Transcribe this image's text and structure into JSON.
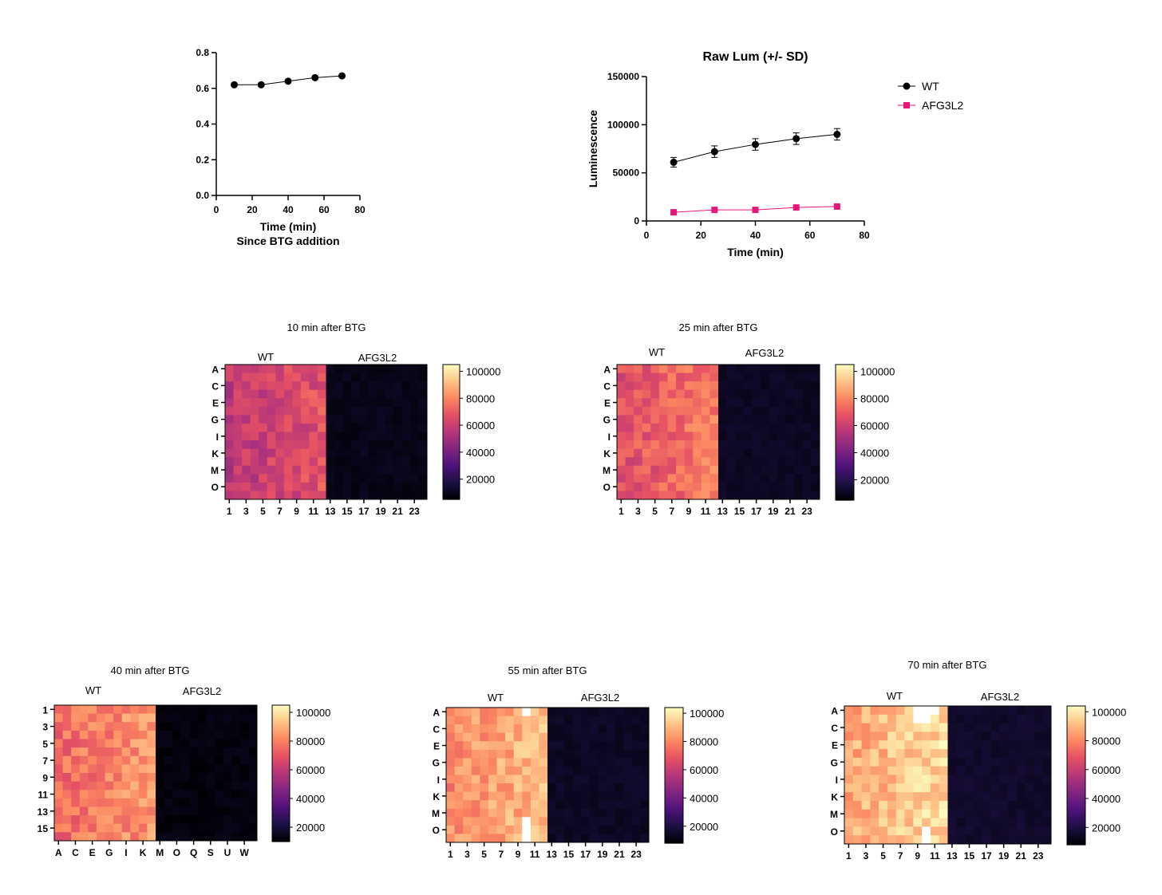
{
  "colors": {
    "wt": "#000000",
    "afg3l2": "#e6177a",
    "colormap": [
      "#000004",
      "#1c1044",
      "#4f127b",
      "#812581",
      "#b5367a",
      "#e55064",
      "#fb8761",
      "#fec287",
      "#fcfdbf"
    ]
  },
  "chart_data": [
    {
      "type": "line",
      "title": "",
      "xlabel": "Time (min)",
      "xlabel2": "Since BTG addition",
      "ylabel": "",
      "xlim": [
        0,
        80
      ],
      "ylim": [
        0,
        0.8
      ],
      "xticks": [
        "0",
        "20",
        "40",
        "60",
        "80"
      ],
      "yticks": [
        "0.0",
        "0.2",
        "0.4",
        "0.6",
        "0.8"
      ],
      "series": [
        {
          "x": [
            10,
            25,
            40,
            55,
            70
          ],
          "values": [
            0.62,
            0.62,
            0.64,
            0.66,
            0.67
          ],
          "marker": "circle",
          "color": "#000000"
        }
      ]
    },
    {
      "type": "line",
      "title": "Raw Lum (+/- SD)",
      "xlabel": "Time (min)",
      "ylabel": "Luminescence",
      "xlim": [
        0,
        80
      ],
      "ylim": [
        0,
        150000
      ],
      "xticks": [
        "0",
        "20",
        "40",
        "60",
        "80"
      ],
      "yticks": [
        "0",
        "50000",
        "100000",
        "150000"
      ],
      "legend_position": "top-right",
      "series": [
        {
          "name": "WT",
          "x": [
            10,
            25,
            40,
            55,
            70
          ],
          "values": [
            61000,
            72000,
            79500,
            85500,
            90000
          ],
          "sd": [
            5000,
            6000,
            6000,
            6000,
            6000
          ],
          "marker": "circle",
          "color": "#000000"
        },
        {
          "name": "AFG3L2",
          "x": [
            10,
            25,
            40,
            55,
            70
          ],
          "values": [
            9000,
            11500,
            11500,
            14000,
            15000
          ],
          "sd": [
            500,
            500,
            500,
            500,
            500
          ],
          "marker": "square",
          "color": "#e6177a"
        }
      ]
    },
    {
      "type": "heatmap",
      "title": "10 min after BTG",
      "groups": [
        "WT",
        "AFG3L2"
      ],
      "row_labels": [
        "A",
        "C",
        "E",
        "G",
        "I",
        "K",
        "M",
        "O"
      ],
      "col_labels": [
        "1",
        "3",
        "5",
        "7",
        "9",
        "11",
        "13",
        "15",
        "17",
        "19",
        "21",
        "23"
      ],
      "rows": 16,
      "cols": 24,
      "colorbar_ticks": [
        "100000",
        "80000",
        "60000",
        "40000",
        "20000"
      ],
      "colorbar_range": [
        5000,
        105000
      ],
      "wt_mean": 62000,
      "afg_mean": 9000,
      "wt_peaks": []
    },
    {
      "type": "heatmap",
      "title": "25 min after BTG",
      "groups": [
        "WT",
        "AFG3L2"
      ],
      "row_labels": [
        "A",
        "C",
        "E",
        "G",
        "I",
        "K",
        "M",
        "O"
      ],
      "col_labels": [
        "1",
        "3",
        "5",
        "7",
        "9",
        "11",
        "13",
        "15",
        "17",
        "19",
        "21",
        "23"
      ],
      "rows": 16,
      "cols": 24,
      "colorbar_ticks": [
        "100000",
        "80000",
        "60000",
        "40000",
        "20000"
      ],
      "colorbar_range": [
        5000,
        105000
      ],
      "wt_mean": 72000,
      "afg_mean": 11000,
      "wt_peaks": []
    },
    {
      "type": "heatmap",
      "title": "40 min after BTG",
      "groups": [
        "WT",
        "AFG3L2"
      ],
      "row_labels": [
        "1",
        "3",
        "5",
        "7",
        "9",
        "11",
        "13",
        "15"
      ],
      "col_labels": [
        "A",
        "C",
        "E",
        "G",
        "I",
        "K",
        "M",
        "O",
        "Q",
        "S",
        "U",
        "W"
      ],
      "rows": 16,
      "cols": 24,
      "colorbar_ticks": [
        "100000",
        "80000",
        "60000",
        "40000",
        "20000"
      ],
      "colorbar_range": [
        10000,
        105000
      ],
      "wt_mean": 80000,
      "afg_mean": 12000,
      "wt_peaks": []
    },
    {
      "type": "heatmap",
      "title": "55 min after BTG",
      "groups": [
        "WT",
        "AFG3L2"
      ],
      "row_labels": [
        "A",
        "C",
        "E",
        "G",
        "I",
        "K",
        "M",
        "O"
      ],
      "col_labels": [
        "1",
        "3",
        "5",
        "7",
        "9",
        "11",
        "13",
        "15",
        "17",
        "19",
        "21",
        "23"
      ],
      "rows": 16,
      "cols": 24,
      "colorbar_ticks": [
        "100000",
        "80000",
        "60000",
        "40000",
        "20000"
      ],
      "colorbar_range": [
        8000,
        104000
      ],
      "wt_mean": 86000,
      "afg_mean": 14000,
      "wt_peaks": [
        [
          0,
          9
        ],
        [
          13,
          9
        ],
        [
          14,
          9
        ],
        [
          15,
          9
        ]
      ]
    },
    {
      "type": "heatmap",
      "title": "70 min after BTG",
      "groups": [
        "WT",
        "AFG3L2"
      ],
      "row_labels": [
        "A",
        "C",
        "E",
        "G",
        "I",
        "K",
        "M",
        "O"
      ],
      "col_labels": [
        "1",
        "3",
        "5",
        "7",
        "9",
        "11",
        "13",
        "15",
        "17",
        "19",
        "21",
        "23"
      ],
      "rows": 16,
      "cols": 24,
      "colorbar_ticks": [
        "100000",
        "80000",
        "60000",
        "40000",
        "20000"
      ],
      "colorbar_range": [
        8000,
        104000
      ],
      "wt_mean": 92000,
      "afg_mean": 15500,
      "wt_peaks": [
        [
          0,
          8
        ],
        [
          0,
          9
        ],
        [
          0,
          10
        ],
        [
          1,
          8
        ],
        [
          1,
          9
        ],
        [
          14,
          9
        ],
        [
          15,
          9
        ]
      ]
    }
  ]
}
